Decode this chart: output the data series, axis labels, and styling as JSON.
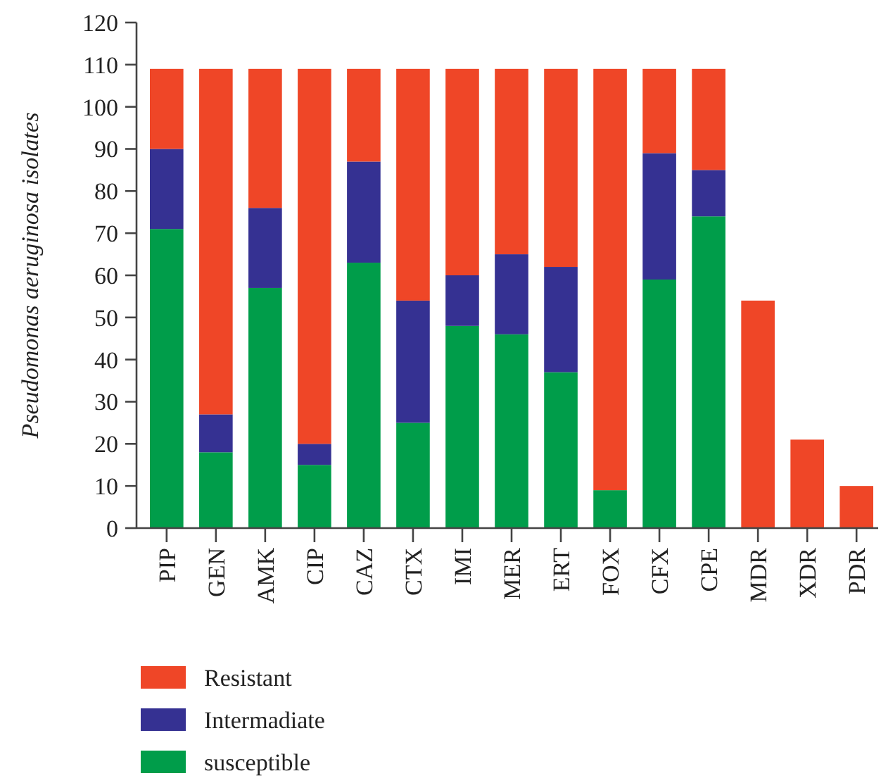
{
  "chart_data": {
    "type": "bar",
    "stacked": true,
    "ylabel": "Pseudomonas aeruginosa isolates",
    "categories": [
      "PIP",
      "GEN",
      "AMK",
      "CIP",
      "CAZ",
      "CTX",
      "IMI",
      "MER",
      "ERT",
      "FOX",
      "CFX",
      "CPE",
      "MDR",
      "XDR",
      "PDR"
    ],
    "series": [
      {
        "name": "susceptible",
        "color": "#009d4a",
        "values": [
          71,
          18,
          57,
          15,
          63,
          25,
          48,
          46,
          37,
          9,
          59,
          74,
          null,
          null,
          null
        ]
      },
      {
        "name": "Intermadiate",
        "color": "#353192",
        "values": [
          19,
          9,
          19,
          5,
          24,
          29,
          12,
          19,
          25,
          null,
          30,
          11,
          null,
          null,
          null
        ]
      },
      {
        "name": "Resistant",
        "color": "#ef4627",
        "values": [
          19,
          82,
          33,
          89,
          22,
          55,
          49,
          44,
          47,
          100,
          20,
          24,
          54,
          21,
          10
        ]
      }
    ],
    "ylim": [
      0,
      120
    ],
    "yticks": [
      0,
      10,
      20,
      30,
      40,
      50,
      60,
      70,
      80,
      90,
      100,
      110,
      120
    ],
    "grid": false,
    "legend": "bottom"
  }
}
